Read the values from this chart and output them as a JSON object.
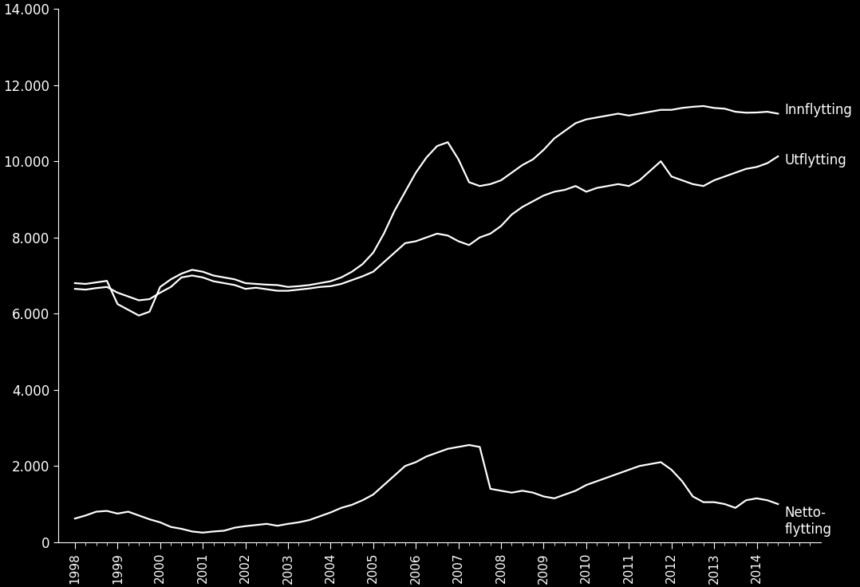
{
  "background_color": "#000000",
  "line_color": "#ffffff",
  "text_color": "#ffffff",
  "ylim": [
    0,
    14000
  ],
  "yticks": [
    0,
    2000,
    4000,
    6000,
    8000,
    10000,
    12000,
    14000
  ],
  "ytick_labels": [
    "0",
    "2.000",
    "4.000",
    "6.000",
    "8.000",
    "10.000",
    "12.000",
    "14.000"
  ],
  "legend_labels": [
    "Innflytting",
    "Utflytting",
    "Netto-\nflytting"
  ],
  "innflytting": [
    6800,
    6780,
    6820,
    6860,
    6250,
    6100,
    5950,
    6050,
    6700,
    6900,
    7050,
    7150,
    7100,
    7000,
    6950,
    6900,
    6800,
    6780,
    6760,
    6750,
    6700,
    6720,
    6750,
    6800,
    6850,
    6950,
    7100,
    7300,
    7600,
    8100,
    8700,
    9200,
    9700,
    10100,
    10400,
    10500,
    10050,
    9450,
    9350,
    9400,
    9500,
    9700,
    9900,
    10050,
    10300,
    10600,
    10800,
    11000,
    11100,
    11150,
    11200,
    11250,
    11200,
    11250,
    11300,
    11350,
    11350,
    11400,
    11430,
    11450,
    11400,
    11380,
    11300,
    11275,
    11280,
    11300,
    11250
  ],
  "utflytting": [
    6650,
    6630,
    6670,
    6700,
    6550,
    6450,
    6350,
    6380,
    6550,
    6700,
    6950,
    7000,
    6950,
    6850,
    6800,
    6750,
    6650,
    6680,
    6640,
    6600,
    6600,
    6630,
    6660,
    6700,
    6720,
    6780,
    6880,
    6980,
    7100,
    7350,
    7600,
    7850,
    7900,
    8000,
    8100,
    8050,
    7900,
    7800,
    8000,
    8100,
    8300,
    8600,
    8800,
    8950,
    9100,
    9200,
    9250,
    9350,
    9200,
    9300,
    9350,
    9400,
    9350,
    9500,
    9750,
    10000,
    9600,
    9500,
    9400,
    9350,
    9500,
    9600,
    9700,
    9800,
    9850,
    9950,
    10129
  ],
  "nettoflytting": [
    620,
    700,
    800,
    820,
    750,
    800,
    700,
    600,
    520,
    400,
    350,
    280,
    250,
    280,
    300,
    380,
    420,
    450,
    480,
    430,
    480,
    520,
    580,
    680,
    780,
    900,
    980,
    1100,
    1250,
    1500,
    1750,
    2000,
    2100,
    2250,
    2350,
    2450,
    2500,
    2550,
    2500,
    1400,
    1350,
    1300,
    1350,
    1300,
    1200,
    1150,
    1250,
    1350,
    1500,
    1600,
    1700,
    1800,
    1900,
    2000,
    2050,
    2100,
    1900,
    1600,
    1200,
    1050,
    1050,
    1000,
    900,
    1100,
    1150,
    1100,
    1000
  ]
}
